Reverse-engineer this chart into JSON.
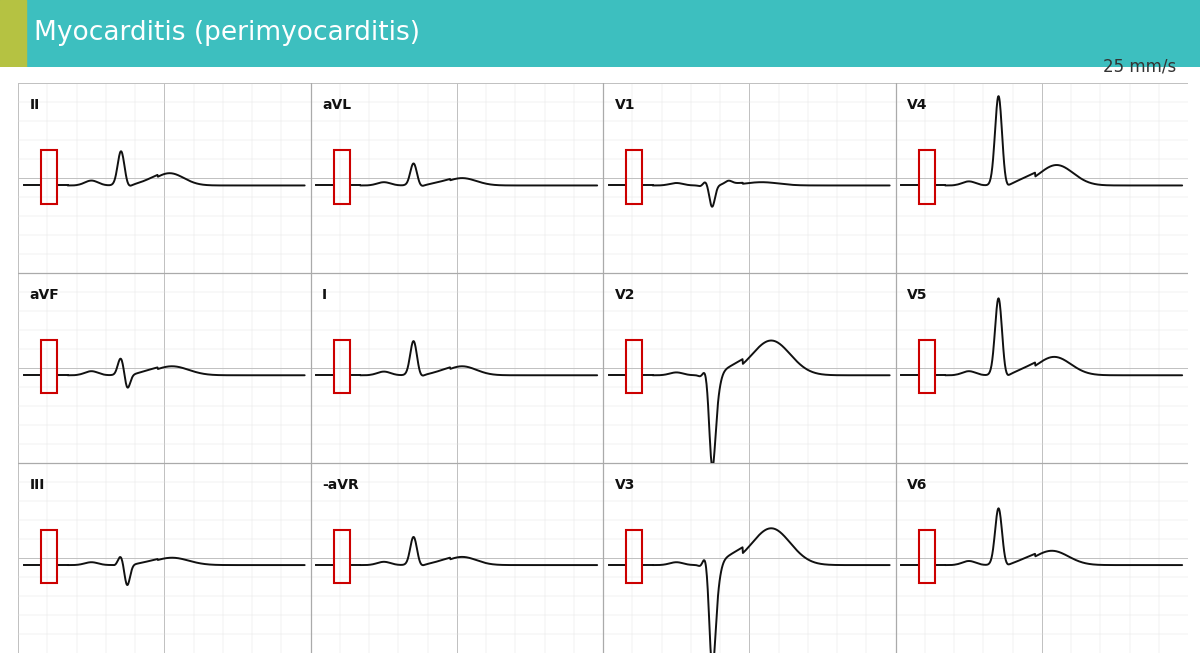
{
  "title": "Myocarditis (perimyocarditis)",
  "title_bg_color": "#3dbfbf",
  "title_accent_color": "#b5c242",
  "title_text_color": "#ffffff",
  "speed_label": "25 mm/s",
  "bg_color": "#ffffff",
  "ecg_color": "#111111",
  "cal_color": "#cc0000",
  "lead_order": [
    [
      "II",
      0,
      0
    ],
    [
      "aVL",
      0,
      1
    ],
    [
      "V1",
      0,
      2
    ],
    [
      "V4",
      0,
      3
    ],
    [
      "aVF",
      1,
      0
    ],
    [
      "I",
      1,
      1
    ],
    [
      "V2",
      1,
      2
    ],
    [
      "V5",
      1,
      3
    ],
    [
      "III",
      2,
      0
    ],
    [
      "-aVR",
      2,
      1
    ],
    [
      "V3",
      2,
      2
    ],
    [
      "V6",
      2,
      3
    ]
  ],
  "n_rows": 3,
  "n_cols": 4
}
